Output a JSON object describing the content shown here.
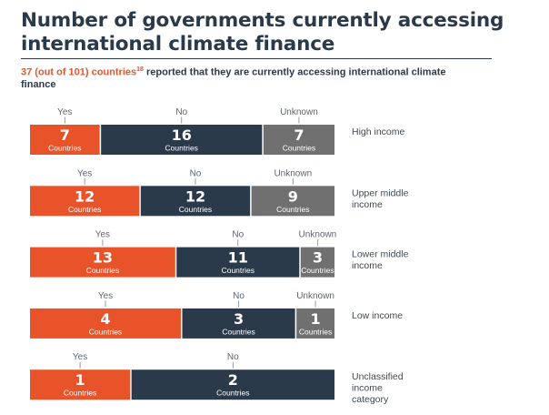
{
  "title": "Number of governments currently accessing international climate finance",
  "subtitle": {
    "highlight": "37 (out of 101) countries",
    "footnote": "18",
    "rest": " reported that they are currently accessing international climate finance"
  },
  "colors": {
    "yes": "#e8532a",
    "no": "#2b3a4b",
    "unknown": "#707070"
  },
  "chart_data": {
    "type": "bar",
    "stacked": true,
    "orientation": "horizontal",
    "normalized": true,
    "unit_label": "Countries",
    "categories": [
      "Yes",
      "No",
      "Unknown"
    ],
    "groups": [
      {
        "label": "High income",
        "values": {
          "Yes": 7,
          "No": 16,
          "Unknown": 7
        }
      },
      {
        "label": "Upper middle income",
        "values": {
          "Yes": 12,
          "No": 12,
          "Unknown": 9
        }
      },
      {
        "label": "Lower middle income",
        "values": {
          "Yes": 13,
          "No": 11,
          "Unknown": 3
        }
      },
      {
        "label": "Low income",
        "values": {
          "Yes": 4,
          "No": 3,
          "Unknown": 1
        }
      },
      {
        "label": "Unclassified income category",
        "values": {
          "Yes": 1,
          "No": 2
        }
      }
    ]
  }
}
